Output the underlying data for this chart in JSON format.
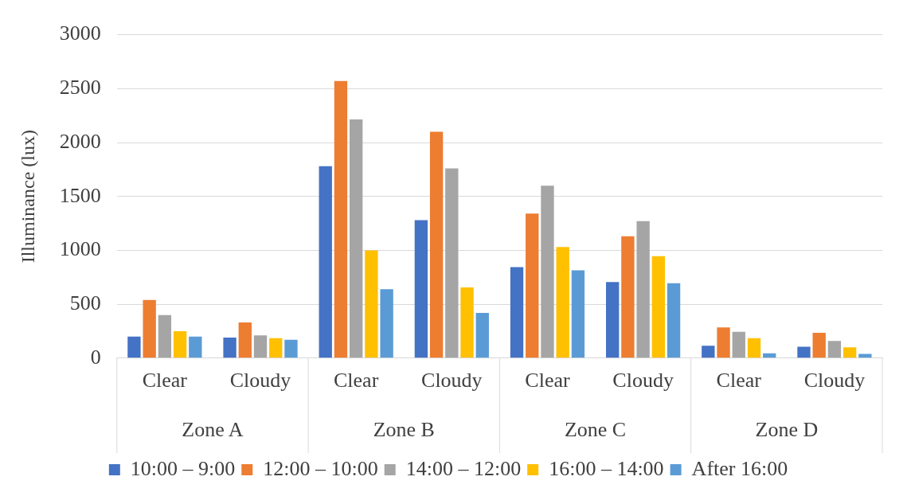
{
  "chart_data": {
    "type": "bar",
    "ylabel": "Illuminance (lux)",
    "categories": [
      "Clear",
      "Cloudy",
      "Clear",
      "Cloudy",
      "Clear",
      "Cloudy",
      "Clear",
      "Cloudy"
    ],
    "annotations": [
      "Zone A",
      "Zone B",
      "Zone C",
      "Zone D"
    ],
    "series": [
      {
        "name": "10:00 – 9:00",
        "color": "#4472c4",
        "values": [
          200,
          190,
          1780,
          1280,
          845,
          705,
          115,
          105
        ]
      },
      {
        "name": "12:00 – 10:00",
        "color": "#ed7d31",
        "values": [
          540,
          330,
          2570,
          2100,
          1340,
          1130,
          285,
          235
        ]
      },
      {
        "name": "14:00 – 12:00",
        "color": "#a5a5a5",
        "values": [
          400,
          210,
          2215,
          1760,
          1600,
          1270,
          245,
          160
        ]
      },
      {
        "name": "16:00 – 14:00",
        "color": "#ffc000",
        "values": [
          250,
          185,
          1000,
          655,
          1030,
          945,
          185,
          100
        ]
      },
      {
        "name": "After 16:00",
        "color": "#5b9bd5",
        "values": [
          200,
          170,
          640,
          420,
          815,
          695,
          45,
          40
        ]
      }
    ],
    "ylim": [
      0,
      3000
    ],
    "yticks": [
      0,
      500,
      1000,
      1500,
      2000,
      2500,
      3000
    ],
    "grid": "y",
    "legend": "bottom"
  }
}
